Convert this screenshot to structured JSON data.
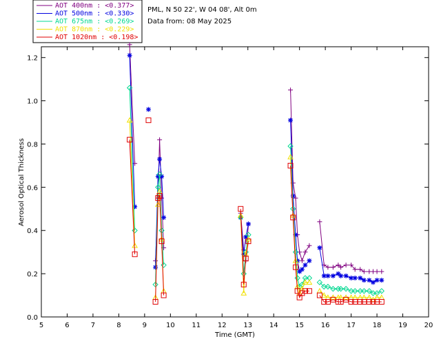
{
  "header": {
    "site": "PML, N 50 22', W 04 08', Alt 0m",
    "date": "Data from: 08 May 2025"
  },
  "chart_data": {
    "type": "line",
    "xlabel": "Time (GMT)",
    "ylabel": "Aerosol Optical Thickness",
    "xlim": [
      5,
      20
    ],
    "ylim": [
      0,
      1.25
    ],
    "xticks": [
      "5",
      "6",
      "7",
      "8",
      "9",
      "10",
      "11",
      "12",
      "13",
      "14",
      "15",
      "16",
      "17",
      "18",
      "19",
      "20"
    ],
    "yticks": [
      "0.0",
      "0.2",
      "0.4",
      "0.6",
      "0.8",
      "1.0",
      "1.2"
    ],
    "legend_position": "top-left",
    "series": [
      {
        "name": "AOT  400nm : <0.377>",
        "color": "#800080",
        "marker": "plus",
        "segments": [
          [
            [
              8.42,
              1.26
            ],
            [
              8.62,
              0.71
            ]
          ],
          [
            [
              9.42,
              0.26
            ],
            [
              9.52,
              0.55
            ],
            [
              9.58,
              0.82
            ],
            [
              9.66,
              0.55
            ],
            [
              9.74,
              0.32
            ]
          ],
          [
            [
              12.72,
              0.48
            ],
            [
              12.84,
              0.31
            ],
            [
              12.92,
              0.26
            ],
            [
              13.02,
              0.43
            ]
          ],
          [
            [
              14.65,
              1.05
            ],
            [
              14.75,
              0.62
            ],
            [
              14.85,
              0.55
            ],
            [
              14.92,
              0.38
            ],
            [
              15.0,
              0.3
            ],
            [
              15.1,
              0.26
            ],
            [
              15.22,
              0.3
            ],
            [
              15.38,
              0.33
            ]
          ],
          [
            [
              15.78,
              0.44
            ],
            [
              15.95,
              0.24
            ],
            [
              16.1,
              0.23
            ],
            [
              16.3,
              0.23
            ],
            [
              16.5,
              0.24
            ],
            [
              16.6,
              0.23
            ],
            [
              16.8,
              0.24
            ],
            [
              17.0,
              0.24
            ],
            [
              17.15,
              0.22
            ],
            [
              17.35,
              0.22
            ],
            [
              17.5,
              0.21
            ],
            [
              17.7,
              0.21
            ],
            [
              17.85,
              0.21
            ],
            [
              18.0,
              0.21
            ],
            [
              18.18,
              0.21
            ]
          ]
        ]
      },
      {
        "name": "AOT  500nm : <0.330>",
        "color": "#0000e0",
        "marker": "star",
        "segments": [
          [
            [
              8.42,
              1.21
            ],
            [
              8.62,
              0.51
            ]
          ],
          [
            [
              9.15,
              0.96
            ]
          ],
          [
            [
              9.42,
              0.23
            ],
            [
              9.52,
              0.65
            ],
            [
              9.58,
              0.73
            ],
            [
              9.66,
              0.65
            ],
            [
              9.74,
              0.46
            ]
          ],
          [
            [
              12.72,
              0.46
            ],
            [
              12.84,
              0.29
            ],
            [
              12.92,
              0.37
            ],
            [
              13.02,
              0.43
            ]
          ],
          [
            [
              14.65,
              0.91
            ],
            [
              14.75,
              0.56
            ],
            [
              14.85,
              0.38
            ],
            [
              14.92,
              0.26
            ],
            [
              15.0,
              0.21
            ],
            [
              15.1,
              0.22
            ],
            [
              15.22,
              0.24
            ],
            [
              15.38,
              0.26
            ]
          ],
          [
            [
              15.78,
              0.32
            ],
            [
              15.95,
              0.19
            ],
            [
              16.1,
              0.19
            ],
            [
              16.3,
              0.19
            ],
            [
              16.5,
              0.2
            ],
            [
              16.6,
              0.19
            ],
            [
              16.8,
              0.19
            ],
            [
              17.0,
              0.18
            ],
            [
              17.15,
              0.18
            ],
            [
              17.35,
              0.18
            ],
            [
              17.5,
              0.17
            ],
            [
              17.7,
              0.17
            ],
            [
              17.85,
              0.16
            ],
            [
              18.0,
              0.17
            ],
            [
              18.18,
              0.17
            ]
          ]
        ]
      },
      {
        "name": "AOT  675nm : <0.269>",
        "color": "#00d890",
        "marker": "diamond",
        "segments": [
          [
            [
              8.42,
              1.06
            ],
            [
              8.62,
              0.4
            ]
          ],
          [
            [
              9.42,
              0.15
            ],
            [
              9.52,
              0.6
            ],
            [
              9.58,
              0.66
            ],
            [
              9.66,
              0.4
            ],
            [
              9.74,
              0.24
            ]
          ],
          [
            [
              12.72,
              0.46
            ],
            [
              12.84,
              0.2
            ],
            [
              12.92,
              0.3
            ],
            [
              13.02,
              0.38
            ]
          ],
          [
            [
              14.65,
              0.79
            ],
            [
              14.75,
              0.5
            ],
            [
              14.85,
              0.3
            ],
            [
              14.92,
              0.18
            ],
            [
              15.0,
              0.14
            ],
            [
              15.1,
              0.15
            ],
            [
              15.22,
              0.18
            ],
            [
              15.38,
              0.18
            ]
          ],
          [
            [
              15.78,
              0.16
            ],
            [
              15.95,
              0.14
            ],
            [
              16.1,
              0.14
            ],
            [
              16.3,
              0.13
            ],
            [
              16.5,
              0.13
            ],
            [
              16.6,
              0.13
            ],
            [
              16.8,
              0.13
            ],
            [
              17.0,
              0.12
            ],
            [
              17.15,
              0.12
            ],
            [
              17.35,
              0.12
            ],
            [
              17.5,
              0.12
            ],
            [
              17.7,
              0.12
            ],
            [
              17.85,
              0.11
            ],
            [
              18.0,
              0.11
            ],
            [
              18.18,
              0.12
            ]
          ]
        ]
      },
      {
        "name": "AOT  870nm : <0.229>",
        "color": "#f0e000",
        "marker": "triangle",
        "segments": [
          [
            [
              8.42,
              0.91
            ],
            [
              8.62,
              0.33
            ]
          ],
          [
            [
              9.42,
              0.09
            ],
            [
              9.52,
              0.52
            ],
            [
              9.58,
              0.58
            ],
            [
              9.66,
              0.36
            ],
            [
              9.74,
              0.12
            ]
          ],
          [
            [
              12.72,
              0.47
            ],
            [
              12.84,
              0.11
            ],
            [
              12.92,
              0.29
            ],
            [
              13.02,
              0.36
            ]
          ],
          [
            [
              14.65,
              0.74
            ],
            [
              14.75,
              0.47
            ],
            [
              14.85,
              0.26
            ],
            [
              14.92,
              0.14
            ],
            [
              15.0,
              0.11
            ],
            [
              15.1,
              0.13
            ],
            [
              15.22,
              0.16
            ],
            [
              15.38,
              0.16
            ]
          ],
          [
            [
              15.78,
              0.12
            ],
            [
              15.95,
              0.1
            ],
            [
              16.1,
              0.09
            ],
            [
              16.3,
              0.09
            ],
            [
              16.5,
              0.09
            ],
            [
              16.6,
              0.09
            ],
            [
              16.8,
              0.09
            ],
            [
              17.0,
              0.09
            ],
            [
              17.15,
              0.09
            ],
            [
              17.35,
              0.09
            ],
            [
              17.5,
              0.09
            ],
            [
              17.7,
              0.09
            ],
            [
              17.85,
              0.08
            ],
            [
              18.0,
              0.09
            ],
            [
              18.18,
              0.09
            ]
          ]
        ]
      },
      {
        "name": "AOT 1020nm : <0.198>",
        "color": "#e00000",
        "marker": "square",
        "segments": [
          [
            [
              8.42,
              0.82
            ],
            [
              8.62,
              0.29
            ]
          ],
          [
            [
              9.15,
              0.91
            ]
          ],
          [
            [
              9.42,
              0.07
            ],
            [
              9.52,
              0.55
            ],
            [
              9.58,
              0.56
            ],
            [
              9.66,
              0.35
            ],
            [
              9.74,
              0.1
            ]
          ],
          [
            [
              12.72,
              0.5
            ],
            [
              12.84,
              0.15
            ],
            [
              12.92,
              0.27
            ],
            [
              13.02,
              0.35
            ]
          ],
          [
            [
              14.65,
              0.7
            ],
            [
              14.75,
              0.46
            ],
            [
              14.85,
              0.23
            ],
            [
              14.92,
              0.12
            ],
            [
              15.0,
              0.09
            ],
            [
              15.1,
              0.11
            ],
            [
              15.22,
              0.12
            ],
            [
              15.38,
              0.12
            ]
          ],
          [
            [
              15.78,
              0.1
            ],
            [
              15.95,
              0.07
            ],
            [
              16.1,
              0.07
            ],
            [
              16.3,
              0.08
            ],
            [
              16.5,
              0.07
            ],
            [
              16.6,
              0.07
            ],
            [
              16.8,
              0.08
            ],
            [
              17.0,
              0.07
            ],
            [
              17.15,
              0.07
            ],
            [
              17.35,
              0.07
            ],
            [
              17.5,
              0.07
            ],
            [
              17.7,
              0.07
            ],
            [
              17.85,
              0.07
            ],
            [
              18.0,
              0.07
            ],
            [
              18.18,
              0.07
            ]
          ]
        ]
      }
    ]
  }
}
